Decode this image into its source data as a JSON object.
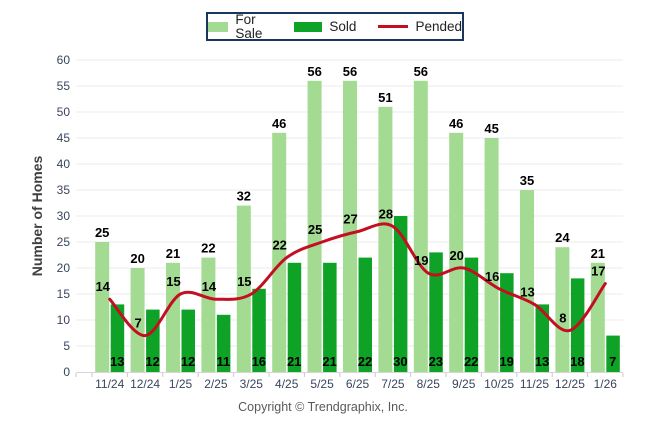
{
  "chart_data": {
    "type": "bar",
    "categories": [
      "11/24",
      "12/24",
      "1/25",
      "2/25",
      "3/25",
      "4/25",
      "5/25",
      "6/25",
      "7/25",
      "8/25",
      "9/25",
      "10/25",
      "11/25",
      "12/25",
      "1/26"
    ],
    "series": [
      {
        "name": "For Sale",
        "type": "bar",
        "color": "#A4DB93",
        "values": [
          25,
          20,
          21,
          22,
          32,
          46,
          56,
          56,
          51,
          56,
          46,
          45,
          35,
          24,
          21
        ]
      },
      {
        "name": "Sold",
        "type": "bar",
        "color": "#0EA226",
        "values": [
          13,
          12,
          12,
          11,
          16,
          21,
          21,
          22,
          30,
          23,
          22,
          19,
          13,
          18,
          7
        ]
      },
      {
        "name": "Pended",
        "type": "line",
        "color": "#C30F22",
        "values": [
          14,
          7,
          15,
          14,
          15,
          22,
          25,
          27,
          28,
          19,
          20,
          16,
          13,
          8,
          17
        ]
      }
    ],
    "title": "",
    "xlabel": "",
    "ylabel": "Number of Homes",
    "ylim": [
      0,
      60
    ],
    "ytick_step": 5,
    "grid": true,
    "legend_position": "top-center"
  },
  "legend_border_color": "#17375E",
  "footer": {
    "copyright": "Copyright © Trendgraphix, Inc."
  }
}
